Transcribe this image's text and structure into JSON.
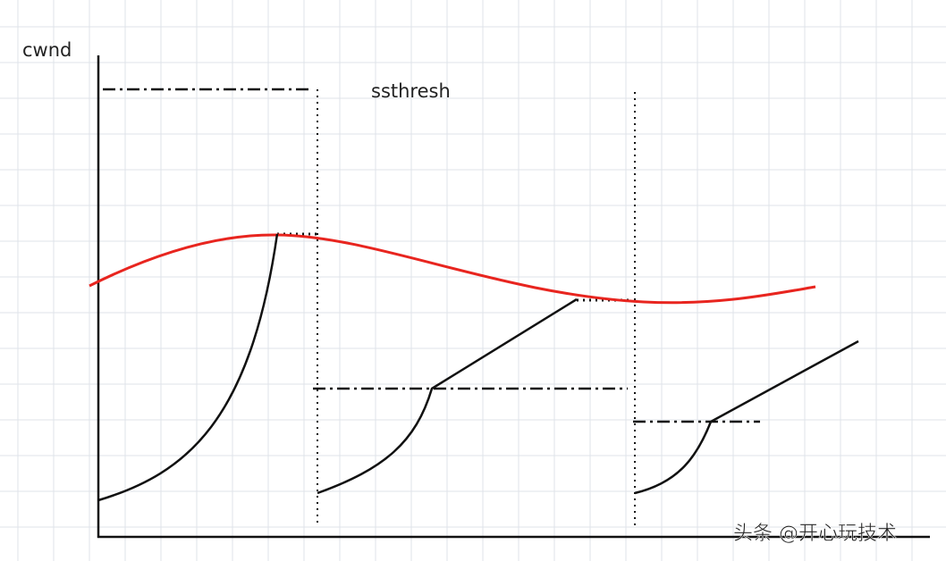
{
  "labels": {
    "y_axis": "cwnd",
    "threshold": "ssthresh"
  },
  "watermark": "头条 @开心玩技术"
}
